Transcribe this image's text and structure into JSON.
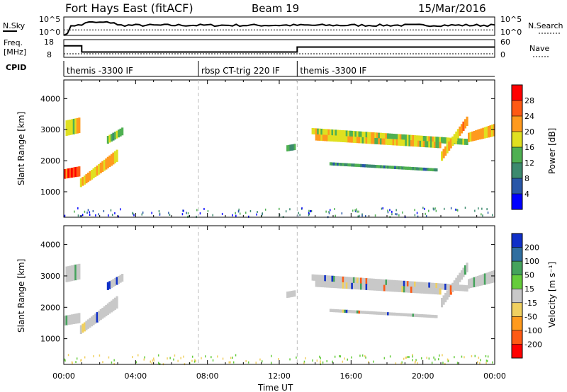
{
  "chart_data": {
    "type": "heatmap",
    "header": {
      "station": "Fort Hays East (fitACF)",
      "beam": "Beam 19",
      "date": "15/Mar/2016"
    },
    "top_panel": {
      "left_label": "N.Sky",
      "right_label": "N.Search",
      "left_ticks": [
        "10^5",
        "10^0"
      ],
      "right_ticks": [
        "10^5",
        "10^0"
      ],
      "nsky_level": 0.55,
      "nsearch_level": 0.3
    },
    "freq_panel": {
      "left_label_1": "Freq.",
      "left_label_2": "[MHz]",
      "right_label": "Nave",
      "left_ticks": [
        "18",
        "8"
      ],
      "right_ticks": [
        "60",
        "0"
      ],
      "freq_steps": [
        {
          "t0": 0.0,
          "t1": 1.0,
          "f": 14.5
        },
        {
          "t0": 1.0,
          "t1": 13.0,
          "f": 11.0
        },
        {
          "t0": 13.0,
          "t1": 24.0,
          "f": 13.8
        }
      ],
      "nave_level": 12
    },
    "cpid": {
      "label": "CPID",
      "segments": [
        {
          "t0": 0.0,
          "t1": 7.5,
          "text": "themis -3300 IF"
        },
        {
          "t0": 7.5,
          "t1": 13.0,
          "text": "rbsp CT-trig 220 IF"
        },
        {
          "t0": 13.0,
          "t1": 24.0,
          "text": "themis -3300 IF"
        }
      ]
    },
    "x_axis": {
      "label": "Time UT",
      "range": [
        0,
        24
      ],
      "ticks": [
        {
          "v": 0,
          "label": "00:00"
        },
        {
          "v": 4,
          "label": "04:00"
        },
        {
          "v": 8,
          "label": "08:00"
        },
        {
          "v": 12,
          "label": "12:00"
        },
        {
          "v": 16,
          "label": "16:00"
        },
        {
          "v": 20,
          "label": "20:00"
        },
        {
          "v": 24,
          "label": "00:00"
        }
      ],
      "dashed_lines": [
        7.5,
        13.0
      ]
    },
    "y_axis": {
      "label": "Slant Range [km]",
      "range": [
        180,
        4600
      ],
      "ticks": [
        1000,
        2000,
        3000,
        4000
      ]
    },
    "power_colorbar": {
      "label": "Power [dB]",
      "ticks": [
        "4",
        "8",
        "12",
        "16",
        "20",
        "24",
        "28"
      ],
      "colors": [
        "#0000ff",
        "#2957a8",
        "#3c8a6e",
        "#4fb052",
        "#e0e020",
        "#ff9a1e",
        "#ff5a14",
        "#ff0000"
      ]
    },
    "velocity_colorbar": {
      "label": "Velocity [m s⁻¹]",
      "ticks": [
        "200",
        "100",
        "50",
        "15",
        "-15",
        "-50",
        "-100",
        "-200"
      ],
      "colors": [
        "#1030c8",
        "#306fa0",
        "#45a35c",
        "#66cc3c",
        "#c8c8c8",
        "#f0d060",
        "#ff9a1e",
        "#ff5a14",
        "#ff0000"
      ]
    },
    "echo_bands": [
      {
        "t0": 0.0,
        "t1": 0.9,
        "r0": 1420,
        "r1": 1730,
        "r0b": 1500,
        "r1b": 1830,
        "power": 27,
        "vel": 0
      },
      {
        "t0": 0.9,
        "t1": 3.0,
        "r0": 1150,
        "r1": 1430,
        "r0b": 2000,
        "r1b": 2400,
        "power": 20,
        "vel": 0
      },
      {
        "t0": 2.4,
        "t1": 3.3,
        "r0": 2550,
        "r1": 2800,
        "r0b": 2850,
        "r1b": 3100,
        "power": 14,
        "vel": 0
      },
      {
        "t0": 0.1,
        "t1": 0.9,
        "r0": 2800,
        "r1": 3300,
        "r0b": 2900,
        "r1b": 3400,
        "power": 18,
        "vel": 0
      },
      {
        "t0": 13.8,
        "t1": 22.5,
        "r0": 2850,
        "r1": 3050,
        "r0b": 2500,
        "r1b": 2700,
        "power": 17,
        "vel": 0
      },
      {
        "t0": 14.0,
        "t1": 21.0,
        "r0": 2650,
        "r1": 2850,
        "r0b": 2400,
        "r1b": 2600,
        "power": 18,
        "vel": 0
      },
      {
        "t0": 14.8,
        "t1": 20.8,
        "r0": 1850,
        "r1": 1950,
        "r0b": 1650,
        "r1b": 1750,
        "power": 11,
        "vel": 0
      },
      {
        "t0": 21.0,
        "t1": 22.5,
        "r0": 2000,
        "r1": 2300,
        "r0b": 3200,
        "r1b": 3500,
        "power": 22,
        "vel": 0
      },
      {
        "t0": 22.5,
        "t1": 24.0,
        "r0": 2600,
        "r1": 2900,
        "r0b": 2800,
        "r1b": 3200,
        "power": 20,
        "vel": 0
      },
      {
        "t0": 12.4,
        "t1": 12.9,
        "r0": 2300,
        "r1": 2500,
        "r0b": 2350,
        "r1b": 2550,
        "power": 14,
        "vel": 0
      }
    ]
  }
}
